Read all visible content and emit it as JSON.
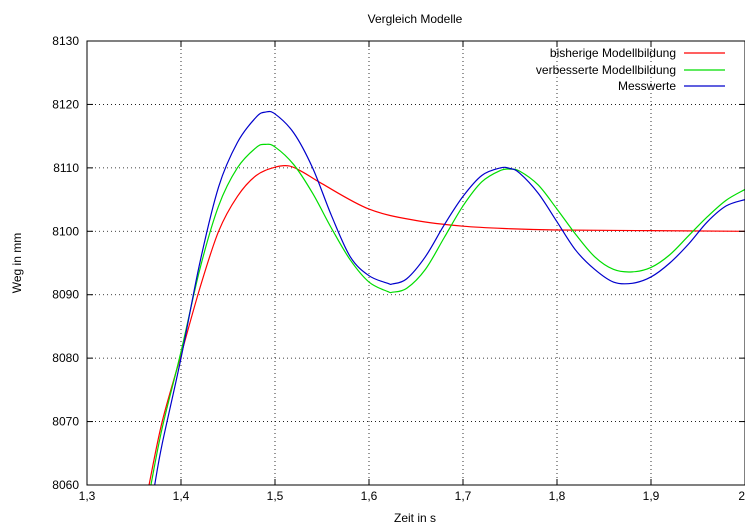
{
  "chart_data": {
    "type": "line",
    "title": "Vergleich Modelle",
    "xlabel": "Zeit in s",
    "ylabel": "Weg in mm",
    "xlim": [
      1.3,
      2.0
    ],
    "ylim": [
      8060,
      8130
    ],
    "x_ticks": [
      1.3,
      1.4,
      1.5,
      1.6,
      1.7,
      1.8,
      1.9,
      2.0
    ],
    "x_tick_labels": [
      "1,3",
      "1,4",
      "1,5",
      "1,6",
      "1,7",
      "1,8",
      "1,9",
      "2"
    ],
    "y_ticks": [
      8060,
      8070,
      8080,
      8090,
      8100,
      8110,
      8120,
      8130
    ],
    "y_tick_labels": [
      "8060",
      "8070",
      "8080",
      "8090",
      "8100",
      "8110",
      "8120",
      "8130"
    ],
    "grid": true,
    "legend_position": "top-right",
    "series": [
      {
        "name": "bisherige Modellbildung",
        "color": "#ff0000",
        "x": [
          1.366,
          1.38,
          1.4,
          1.42,
          1.44,
          1.46,
          1.48,
          1.5,
          1.515,
          1.53,
          1.55,
          1.6,
          1.65,
          1.7,
          1.75,
          1.8,
          1.9,
          2.0
        ],
        "y": [
          8060,
          8070,
          8080.5,
          8091,
          8100,
          8105.5,
          8108.8,
          8110.1,
          8110.3,
          8109.3,
          8107.5,
          8103.5,
          8101.7,
          8100.8,
          8100.4,
          8100.2,
          8100.1,
          8100.0
        ]
      },
      {
        "name": "verbesserte Modellbildung",
        "color": "#00dd00",
        "x": [
          1.368,
          1.38,
          1.4,
          1.42,
          1.44,
          1.46,
          1.48,
          1.49,
          1.5,
          1.52,
          1.54,
          1.56,
          1.58,
          1.6,
          1.62,
          1.625,
          1.64,
          1.66,
          1.68,
          1.7,
          1.72,
          1.74,
          1.75,
          1.76,
          1.78,
          1.8,
          1.82,
          1.84,
          1.86,
          1.88,
          1.9,
          1.92,
          1.94,
          1.96,
          1.98,
          2.0
        ],
        "y": [
          8060,
          8069,
          8081,
          8094,
          8104,
          8110,
          8113.2,
          8113.7,
          8113.3,
          8110.5,
          8106,
          8100.5,
          8095.5,
          8092,
          8090.5,
          8090.4,
          8091,
          8094,
          8099,
          8104,
          8107.8,
          8109.6,
          8109.8,
          8109.5,
          8107.3,
          8103.5,
          8099.5,
          8096,
          8094,
          8093.6,
          8094.3,
          8096.3,
          8099.3,
          8102.3,
          8104.9,
          8106.6
        ]
      },
      {
        "name": "Messwerte",
        "color": "#0000cc",
        "x": [
          1.372,
          1.38,
          1.4,
          1.42,
          1.44,
          1.46,
          1.48,
          1.49,
          1.5,
          1.52,
          1.54,
          1.56,
          1.58,
          1.6,
          1.62,
          1.625,
          1.64,
          1.66,
          1.68,
          1.7,
          1.72,
          1.74,
          1.75,
          1.76,
          1.78,
          1.8,
          1.82,
          1.84,
          1.86,
          1.88,
          1.9,
          1.92,
          1.94,
          1.96,
          1.98,
          2.0
        ],
        "y": [
          8060,
          8066.5,
          8080,
          8095,
          8107,
          8114,
          8118,
          8118.8,
          8118.5,
          8115.5,
          8110,
          8102.5,
          8096,
          8093,
          8091.8,
          8091.7,
          8092.5,
          8096,
          8101,
          8105.5,
          8108.8,
          8110,
          8109.9,
          8109.2,
          8106,
          8101.5,
          8097,
          8094,
          8092,
          8091.8,
          8092.8,
          8095,
          8098,
          8101.5,
          8104,
          8105
        ]
      }
    ]
  }
}
